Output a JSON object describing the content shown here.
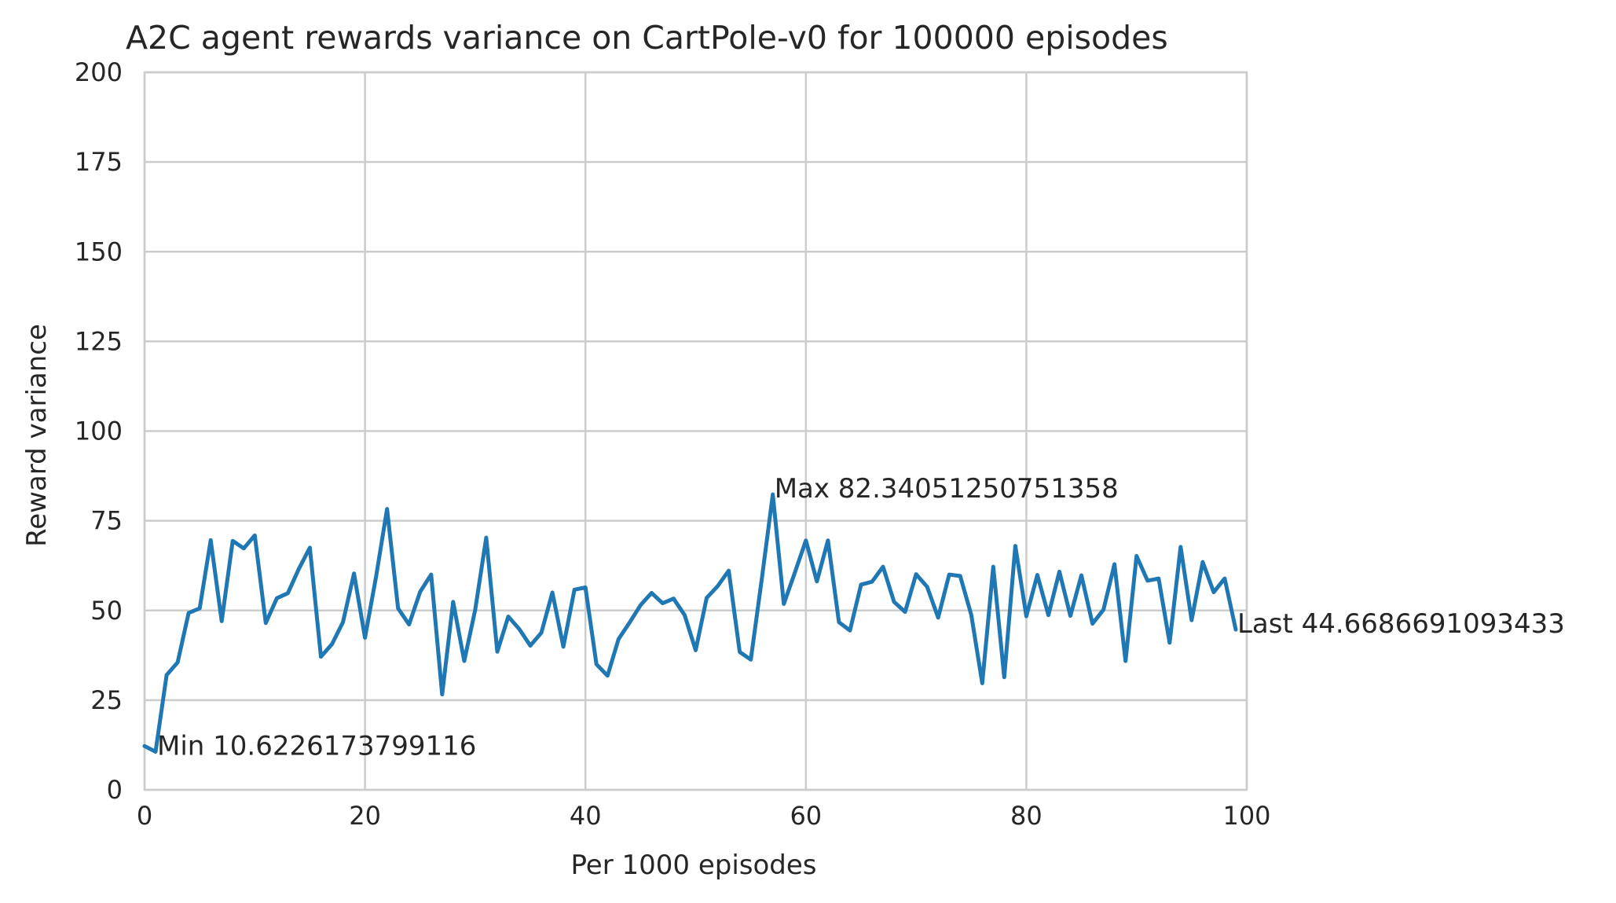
{
  "chart_data": {
    "type": "line",
    "title": "A2C agent rewards variance on CartPole-v0 for 100000 episodes",
    "xlabel": "Per 1000 episodes",
    "ylabel": "Reward variance",
    "xlim": [
      0,
      100
    ],
    "ylim": [
      0,
      200
    ],
    "xticks": [
      0,
      20,
      40,
      60,
      80,
      100
    ],
    "yticks": [
      0,
      25,
      50,
      75,
      100,
      125,
      150,
      175,
      200
    ],
    "grid": true,
    "line_color": "#1f77b4",
    "series": [
      {
        "x": [
          0,
          1,
          2,
          3,
          4,
          5,
          6,
          7,
          8,
          9,
          10,
          11,
          12,
          13,
          14,
          15,
          16,
          17,
          18,
          19,
          20,
          21,
          22,
          23,
          24,
          25,
          26,
          27,
          28,
          29,
          30,
          31,
          32,
          33,
          34,
          35,
          36,
          37,
          38,
          39,
          40,
          41,
          42,
          43,
          44,
          45,
          46,
          47,
          48,
          49,
          50,
          51,
          52,
          53,
          54,
          55,
          56,
          57,
          58,
          59,
          60,
          61,
          62,
          63,
          64,
          65,
          66,
          67,
          68,
          69,
          70,
          71,
          72,
          73,
          74,
          75,
          76,
          77,
          78,
          79,
          80,
          81,
          82,
          83,
          84,
          85,
          86,
          87,
          88,
          89,
          90,
          91,
          92,
          93,
          94,
          95,
          96,
          97,
          98,
          99
        ],
        "values": [
          12.2,
          10.62,
          32,
          35.5,
          49.3,
          50.6,
          69.6,
          47,
          69.4,
          67.3,
          70.9,
          46.5,
          53.4,
          54.8,
          61.6,
          67.5,
          37.1,
          40.6,
          46.7,
          60.3,
          42.4,
          59.3,
          78.3,
          50.6,
          46.1,
          55.2,
          60,
          26.6,
          52.4,
          35.9,
          50.2,
          70.3,
          38.5,
          48.3,
          44.8,
          40.2,
          43.8,
          55,
          39.9,
          55.8,
          56.4,
          35,
          31.8,
          42,
          46.6,
          51.5,
          54.9,
          52,
          53.3,
          48.7,
          38.9,
          53.5,
          56.8,
          61.1,
          38.4,
          36.3,
          58.8,
          82.34,
          51.8,
          60.6,
          69.5,
          58.1,
          69.5,
          46.7,
          44.4,
          57.2,
          58,
          62.2,
          52.4,
          49.6,
          60.1,
          56.6,
          48,
          60,
          59.6,
          48.8,
          29.7,
          62.2,
          31.4,
          68,
          48.4,
          59.9,
          48.7,
          60.8,
          48.5,
          59.8,
          46.3,
          50.2,
          62.9,
          35.9,
          65.2,
          58.3,
          58.9,
          41,
          67.7,
          47.3,
          63.5,
          55.1,
          58.9,
          44.67
        ]
      }
    ],
    "annotations": [
      {
        "text": "Min 10.6226173799116",
        "x": 1,
        "y": 10.6226173799116
      },
      {
        "text": "Max 82.34051250751358",
        "x": 57,
        "y": 82.34051250751358
      },
      {
        "text": "Last 44.6686691093433",
        "x": 99,
        "y": 44.6686691093433
      }
    ]
  }
}
